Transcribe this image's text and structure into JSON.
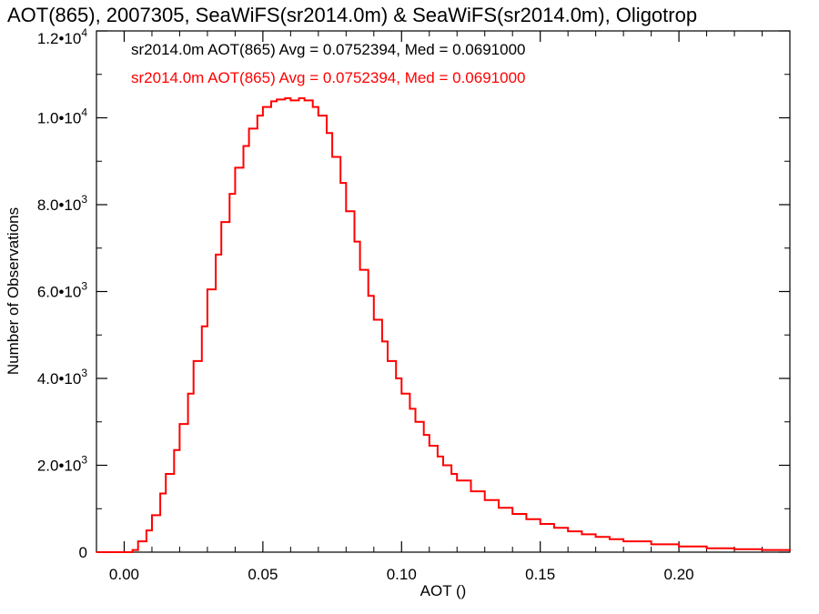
{
  "chart_data": {
    "type": "line",
    "title": "AOT(865), 2007305, SeaWiFS(sr2014.0m) & SeaWiFS(sr2014.0m), Oligotrop",
    "xlabel": "AOT ()",
    "ylabel": "Number of Observations",
    "xlim": [
      -0.01,
      0.24
    ],
    "ylim": [
      0,
      12000
    ],
    "grid": false,
    "x_ticks": [
      {
        "value": 0.0,
        "label": "0.00"
      },
      {
        "value": 0.05,
        "label": "0.05"
      },
      {
        "value": 0.1,
        "label": "0.10"
      },
      {
        "value": 0.15,
        "label": "0.15"
      },
      {
        "value": 0.2,
        "label": "0.20"
      }
    ],
    "y_ticks": [
      {
        "value": 0,
        "label": "0"
      },
      {
        "value": 2000,
        "mant": "2.0•10",
        "exp": "3"
      },
      {
        "value": 4000,
        "mant": "4.0•10",
        "exp": "3"
      },
      {
        "value": 6000,
        "mant": "6.0•10",
        "exp": "3"
      },
      {
        "value": 8000,
        "mant": "8.0•10",
        "exp": "3"
      },
      {
        "value": 10000,
        "mant": "1.0•10",
        "exp": "4"
      },
      {
        "value": 12000,
        "mant": "1.2•10",
        "exp": "4"
      }
    ],
    "annotations": [
      {
        "text": "sr2014.0m AOT(865) Avg = 0.0752394, Med = 0.0691000",
        "color": "#000000"
      },
      {
        "text": "sr2014.0m AOT(865) Avg = 0.0752394, Med = 0.0691000",
        "color": "#ff0000"
      }
    ],
    "series": [
      {
        "color": "#ff0000",
        "x": [
          -0.01,
          0.0,
          0.003,
          0.005,
          0.008,
          0.01,
          0.013,
          0.015,
          0.018,
          0.02,
          0.023,
          0.025,
          0.028,
          0.03,
          0.033,
          0.035,
          0.038,
          0.04,
          0.043,
          0.045,
          0.048,
          0.05,
          0.053,
          0.055,
          0.058,
          0.06,
          0.063,
          0.065,
          0.068,
          0.07,
          0.073,
          0.075,
          0.078,
          0.08,
          0.083,
          0.085,
          0.088,
          0.09,
          0.093,
          0.095,
          0.098,
          0.1,
          0.103,
          0.105,
          0.108,
          0.11,
          0.113,
          0.115,
          0.118,
          0.12,
          0.125,
          0.13,
          0.135,
          0.14,
          0.145,
          0.15,
          0.155,
          0.16,
          0.165,
          0.17,
          0.175,
          0.18,
          0.19,
          0.2,
          0.21,
          0.22,
          0.23,
          0.24
        ],
        "y": [
          0,
          0,
          50,
          250,
          500,
          850,
          1350,
          1800,
          2350,
          2950,
          3650,
          4400,
          5200,
          6050,
          6850,
          7600,
          8250,
          8850,
          9350,
          9750,
          10050,
          10250,
          10380,
          10420,
          10450,
          10400,
          10450,
          10400,
          10250,
          10050,
          9650,
          9100,
          8500,
          7850,
          7150,
          6500,
          5900,
          5350,
          4850,
          4400,
          4000,
          3650,
          3300,
          3000,
          2700,
          2450,
          2200,
          2000,
          1800,
          1650,
          1400,
          1200,
          1020,
          880,
          760,
          650,
          560,
          480,
          410,
          350,
          300,
          250,
          180,
          130,
          90,
          70,
          50,
          30
        ]
      }
    ]
  }
}
